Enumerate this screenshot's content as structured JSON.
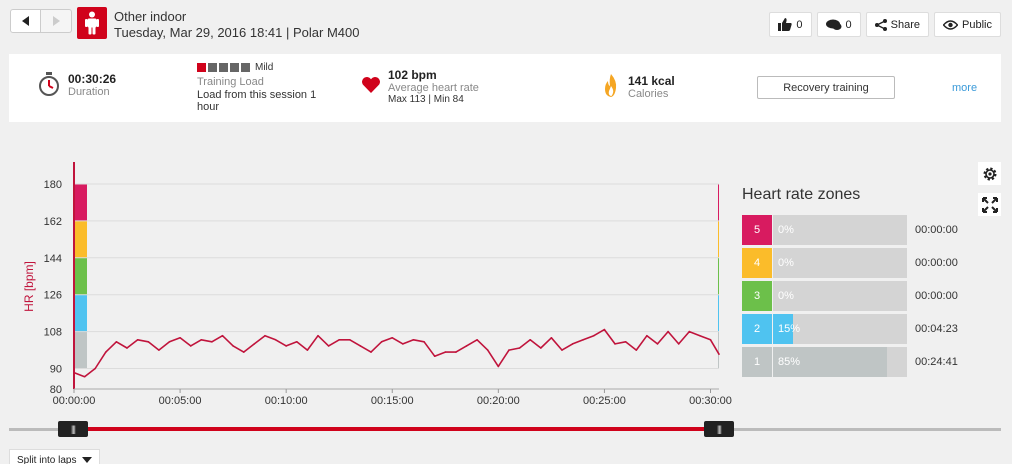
{
  "header": {
    "title": "Other indoor",
    "subtitle": "Tuesday, Mar 29, 2016 18:41 | Polar M400",
    "likes": "0",
    "comments": "0",
    "share_label": "Share",
    "privacy_label": "Public"
  },
  "summary": {
    "duration": {
      "value": "00:30:26",
      "label": "Duration"
    },
    "training_load": {
      "level": "Mild",
      "label": "Training Load",
      "text": "Load from this session 1 hour",
      "filled_squares": 1,
      "total_squares": 5
    },
    "heart_rate": {
      "value": "102 bpm",
      "label": "Average heart rate",
      "detail": "Max 113  |  Min 84"
    },
    "calories": {
      "value": "141 kcal",
      "label": "Calories"
    },
    "benefit_button": "Recovery training",
    "more_link": "more"
  },
  "zones": {
    "title": "Heart rate zones",
    "rows": [
      {
        "zone": "5",
        "pct": "0%",
        "fraction": 0.0,
        "time": "00:00:00",
        "color": "#d81b60"
      },
      {
        "zone": "4",
        "pct": "0%",
        "fraction": 0.0,
        "time": "00:00:00",
        "color": "#fbbc2a"
      },
      {
        "zone": "3",
        "pct": "0%",
        "fraction": 0.0,
        "time": "00:00:00",
        "color": "#6cc04a"
      },
      {
        "zone": "2",
        "pct": "15%",
        "fraction": 0.15,
        "time": "00:04:23",
        "color": "#4fc3f0"
      },
      {
        "zone": "1",
        "pct": "85%",
        "fraction": 0.85,
        "time": "00:24:41",
        "color": "#bfc5c5"
      }
    ]
  },
  "laps_button": "Split into laps",
  "chart_data": {
    "type": "line",
    "ylabel": "HR [bpm]",
    "ylim": [
      80,
      180
    ],
    "y_ticks": [
      "180",
      "162",
      "144",
      "126",
      "108",
      "90",
      "80"
    ],
    "x_ticks": [
      "00:00:00",
      "00:05:00",
      "00:10:00",
      "00:15:00",
      "00:20:00",
      "00:25:00",
      "00:30:00"
    ],
    "x_minutes": [
      0,
      0.5,
      1,
      1.5,
      2,
      2.5,
      3,
      3.5,
      4,
      4.5,
      5,
      5.5,
      6,
      6.5,
      7,
      7.5,
      8,
      8.5,
      9,
      9.5,
      10,
      10.5,
      11,
      11.5,
      12,
      12.5,
      13,
      13.5,
      14,
      14.5,
      15,
      15.5,
      16,
      16.5,
      17,
      17.5,
      18,
      18.5,
      19,
      19.5,
      20,
      20.5,
      21,
      21.5,
      22,
      22.5,
      23,
      23.5,
      24,
      24.5,
      25,
      25.5,
      26,
      26.5,
      27,
      27.5,
      28,
      28.5,
      29,
      29.5,
      30,
      30.4
    ],
    "series": [
      {
        "values": [
          88,
          86,
          90,
          98,
          103,
          100,
          104,
          103,
          99,
          103,
          105,
          101,
          104,
          103,
          106,
          101,
          98,
          102,
          106,
          104,
          101,
          103,
          99,
          106,
          101,
          104,
          104,
          101,
          98,
          103,
          105,
          102,
          104,
          103,
          96,
          98,
          98,
          101,
          104,
          99,
          91,
          99,
          100,
          104,
          100,
          105,
          99,
          102,
          104,
          106,
          109,
          102,
          103,
          99,
          106,
          102,
          108,
          102,
          108,
          106,
          104,
          97
        ]
      }
    ],
    "zone_bands": [
      "#d81b60",
      "#fbbc2a",
      "#6cc04a",
      "#4fc3f0",
      "#bfc5c5"
    ],
    "line_color": "#c0143c"
  }
}
